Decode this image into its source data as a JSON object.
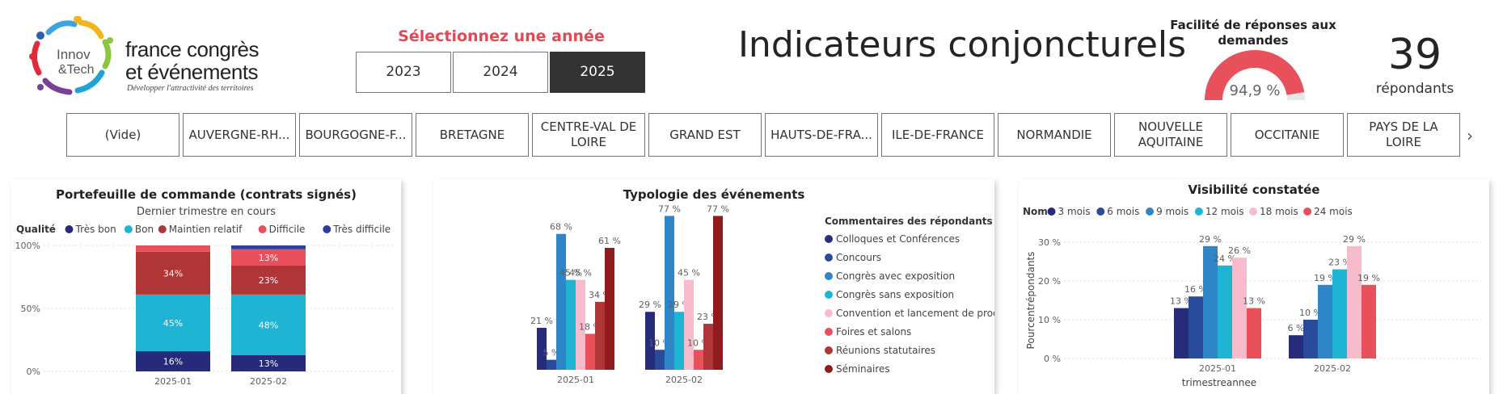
{
  "logo": {
    "innov": "Innov",
    "tech": "&Tech",
    "line1": "france congrès",
    "line2": "et événements",
    "tagline": "Développer l'attractivité des territoires"
  },
  "year_selector": {
    "title": "Sélectionnez une année",
    "years": [
      {
        "label": "2023",
        "selected": false
      },
      {
        "label": "2024",
        "selected": false
      },
      {
        "label": "2025",
        "selected": true
      }
    ]
  },
  "main_title": "Indicateurs conjoncturels",
  "gauge": {
    "title": "Facilité de réponses aux demandes",
    "value_label": "94,9 %",
    "value": 0.949,
    "color": "#e8505b"
  },
  "respondents": {
    "count": "39",
    "label": "répondants"
  },
  "regions": [
    "(Vide)",
    "AUVERGNE-RH...",
    "BOURGOGNE-F...",
    "BRETAGNE",
    "CENTRE-VAL DE LOIRE",
    "GRAND EST",
    "HAUTS-DE-FRA...",
    "ILE-DE-FRANCE",
    "NORMANDIE",
    "NOUVELLE AQUITAINE",
    "OCCITANIE",
    "PAYS DE LA LOIRE"
  ],
  "region_next_icon": "chevron-right-icon",
  "chart_data": [
    {
      "type": "bar",
      "stacked": true,
      "title": "Portefeuille de commande (contrats signés)",
      "subtitle": "Dernier trimestre en cours",
      "legend_title": "Qualité",
      "legend_position": "top-left",
      "categories": [
        "2025-01",
        "2025-02"
      ],
      "yticks": [
        "0%",
        "50%",
        "100%"
      ],
      "ylim": [
        0,
        100
      ],
      "series": [
        {
          "name": "Très bon",
          "color": "#252a7a",
          "values": [
            16,
            13
          ],
          "labels": [
            "16%",
            "13%"
          ]
        },
        {
          "name": "Bon",
          "color": "#1fb4d4",
          "values": [
            45,
            48
          ],
          "labels": [
            "45%",
            "48%"
          ]
        },
        {
          "name": "Maintien relatif",
          "color": "#b03537",
          "values": [
            34,
            23
          ],
          "labels": [
            "34%",
            "23%"
          ]
        },
        {
          "name": "Difficile",
          "color": "#e8505b",
          "values": [
            5,
            13
          ],
          "labels": [
            "",
            "13%"
          ]
        },
        {
          "name": "Très difficile",
          "color": "#2b3e9c",
          "values": [
            0,
            3
          ],
          "labels": [
            "",
            ""
          ]
        }
      ]
    },
    {
      "type": "bar",
      "title": "Typologie des événements",
      "legend_title": "Commentaires des répondants",
      "legend_position": "right",
      "categories": [
        "2025-01",
        "2025-02"
      ],
      "ylim": [
        0,
        80
      ],
      "series": [
        {
          "name": "Colloques et Conférences",
          "color": "#262b7a",
          "values": [
            21,
            29
          ],
          "labels": [
            "21 %",
            "29 %"
          ]
        },
        {
          "name": "Concours",
          "color": "#2a4b9c",
          "values": [
            5,
            10
          ],
          "labels": [
            "5 %",
            "10 %"
          ]
        },
        {
          "name": "Congrès avec exposition",
          "color": "#2e86c8",
          "values": [
            68,
            77
          ],
          "labels": [
            "68 %",
            "77 %"
          ]
        },
        {
          "name": "Congrès sans exposition",
          "color": "#1fb4d4",
          "values": [
            45,
            29
          ],
          "labels": [
            "45 %",
            "29 %"
          ]
        },
        {
          "name": "Convention et lancement de produ...",
          "color": "#f7bccb",
          "values": [
            45,
            45
          ],
          "labels": [
            "45 %",
            "45 %"
          ]
        },
        {
          "name": "Foires et salons",
          "color": "#e8505b",
          "values": [
            18,
            10
          ],
          "labels": [
            "18 %",
            "10 %"
          ]
        },
        {
          "name": "Réunions statutaires",
          "color": "#b03537",
          "values": [
            34,
            23
          ],
          "labels": [
            "34 %",
            "23 %"
          ]
        },
        {
          "name": "Séminaires",
          "color": "#8f1b1f",
          "values": [
            61,
            77
          ],
          "labels": [
            "61 %",
            "77 %"
          ]
        }
      ]
    },
    {
      "type": "bar",
      "title": "Visibilité constatée",
      "legend_title": "Nom",
      "legend_position": "top-left",
      "xlabel": "trimestreannee",
      "ylabel": "Pourcentrépondants",
      "categories": [
        "2025-01",
        "2025-02"
      ],
      "yticks": [
        "0 %",
        "10 %",
        "20 %",
        "30 %"
      ],
      "ylim": [
        0,
        30
      ],
      "series": [
        {
          "name": "3 mois",
          "color": "#262b7a",
          "values": [
            13,
            6
          ],
          "labels": [
            "13 %",
            "6 %"
          ]
        },
        {
          "name": "6 mois",
          "color": "#2a4b9c",
          "values": [
            16,
            10
          ],
          "labels": [
            "16 %",
            "10 %"
          ]
        },
        {
          "name": "9 mois",
          "color": "#2e86c8",
          "values": [
            29,
            19
          ],
          "labels": [
            "29 %",
            "19 %"
          ]
        },
        {
          "name": "12 mois",
          "color": "#1fb4d4",
          "values": [
            24,
            23
          ],
          "labels": [
            "24 %",
            "23 %"
          ]
        },
        {
          "name": "18 mois",
          "color": "#f7bccb",
          "values": [
            26,
            29
          ],
          "labels": [
            "26 %",
            "29 %"
          ]
        },
        {
          "name": "24 mois",
          "color": "#e8505b",
          "values": [
            13,
            19
          ],
          "labels": [
            "13 %",
            "19 %"
          ]
        }
      ]
    }
  ]
}
